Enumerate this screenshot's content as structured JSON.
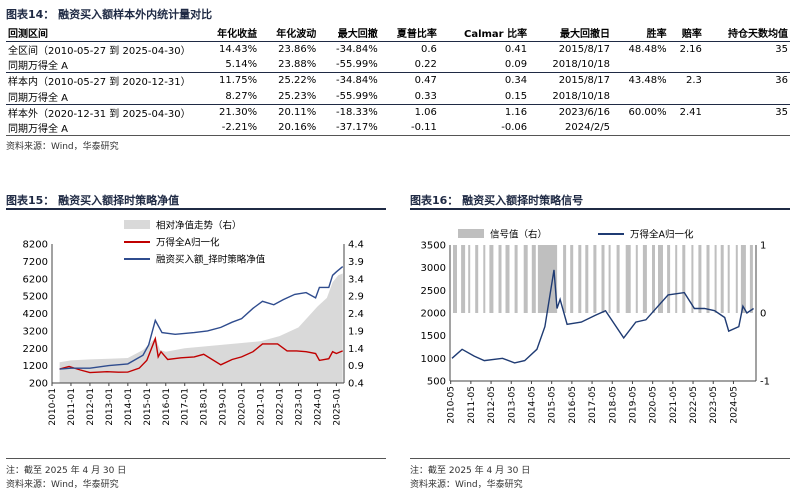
{
  "fig14": {
    "title": "图表14： 融资买入额样本外内统计量对比",
    "headers": [
      "回测区间",
      "年化收益",
      "年化波动",
      "最大回撤",
      "夏普比率",
      "Calmar 比率",
      "最大回撤日",
      "胜率",
      "赔率",
      "持仓天数均值"
    ],
    "rows": [
      [
        "全区间（2010-05-27 到 2025-04-30）",
        "14.43%",
        "23.86%",
        "-34.84%",
        "0.6",
        "0.41",
        "2015/8/17",
        "48.48%",
        "2.16",
        "35"
      ],
      [
        "同期万得全 A",
        "5.14%",
        "23.88%",
        "-55.99%",
        "0.22",
        "0.09",
        "2018/10/18",
        "",
        "",
        ""
      ],
      [
        "样本内（2010-05-27 到 2020-12-31）",
        "11.75%",
        "25.22%",
        "-34.84%",
        "0.47",
        "0.34",
        "2015/8/17",
        "43.48%",
        "2.3",
        "36"
      ],
      [
        "同期万得全 A",
        "8.27%",
        "25.23%",
        "-55.99%",
        "0.33",
        "0.15",
        "2018/10/18",
        "",
        "",
        ""
      ],
      [
        "样本外（2020-12-31 到 2025-04-30）",
        "21.30%",
        "20.11%",
        "-18.33%",
        "1.06",
        "1.16",
        "2023/6/16",
        "60.00%",
        "2.41",
        "35"
      ],
      [
        "同期万得全 A",
        "-2.21%",
        "20.16%",
        "-37.17%",
        "-0.11",
        "-0.06",
        "2024/2/5",
        "",
        "",
        ""
      ]
    ],
    "source": "资料来源：Wind，华泰研究"
  },
  "fig15": {
    "title": "图表15： 融资买入额择时策略净值",
    "note": "注：截至 2025 年 4 月 30 日",
    "source": "资料来源：Wind，华泰研究"
  },
  "fig16": {
    "title": "图表16： 融资买入额择时策略信号",
    "note": "注：截至 2025 年 4 月 30 日",
    "source": "资料来源：Wind，华泰研究"
  },
  "chart_data": [
    {
      "id": "fig15",
      "type": "line",
      "series": [
        {
          "name": "相对净值走势（右）",
          "kind": "area",
          "axis": "right",
          "color": "#d9d9d9",
          "x": [
            2010.4,
            2011,
            2012,
            2013,
            2014,
            2014.8,
            2015.1,
            2015.45,
            2015.7,
            2016,
            2017,
            2018,
            2019,
            2020,
            2021,
            2022,
            2023,
            2024,
            2024.5,
            2024.8,
            2025.1,
            2025.33
          ],
          "values": [
            1.0,
            1.05,
            1.08,
            1.1,
            1.12,
            1.35,
            1.5,
            1.7,
            1.35,
            1.3,
            1.4,
            1.45,
            1.5,
            1.55,
            1.6,
            1.75,
            2.0,
            2.6,
            2.85,
            3.3,
            3.5,
            3.55
          ]
        },
        {
          "name": "万得全A归一化",
          "kind": "line",
          "axis": "left",
          "color": "#c00000",
          "x": [
            2010.4,
            2010.9,
            2011.5,
            2012.0,
            2012.9,
            2013.5,
            2014.0,
            2014.6,
            2015.0,
            2015.45,
            2015.6,
            2015.75,
            2016.1,
            2016.8,
            2017.5,
            2018.0,
            2018.9,
            2019.5,
            2020.0,
            2020.6,
            2021.1,
            2021.9,
            2022.4,
            2022.9,
            2023.4,
            2023.9,
            2024.1,
            2024.6,
            2024.8,
            2025.0,
            2025.33
          ],
          "values": [
            1000,
            1150,
            950,
            800,
            850,
            820,
            830,
            1050,
            1500,
            2750,
            1700,
            2000,
            1550,
            1650,
            1700,
            1850,
            1250,
            1550,
            1700,
            2000,
            2450,
            2450,
            2050,
            2050,
            2000,
            1900,
            1500,
            1600,
            2000,
            1900,
            2050
          ]
        },
        {
          "name": "融资买入额_择时策略净值",
          "kind": "line",
          "axis": "left",
          "color": "#2f4c8e",
          "x": [
            2010.4,
            2011,
            2012,
            2013,
            2014,
            2014.8,
            2015.1,
            2015.45,
            2015.8,
            2016.5,
            2017.5,
            2018.2,
            2018.9,
            2019.5,
            2020,
            2020.6,
            2021.1,
            2021.7,
            2022.2,
            2022.8,
            2023.4,
            2023.9,
            2024.1,
            2024.6,
            2024.8,
            2025.0,
            2025.33
          ],
          "values": [
            1000,
            1050,
            1050,
            1200,
            1300,
            1800,
            2400,
            3800,
            3100,
            3000,
            3100,
            3200,
            3400,
            3700,
            3900,
            4500,
            4900,
            4700,
            5000,
            5300,
            5400,
            5100,
            5700,
            5700,
            6400,
            6600,
            6900
          ]
        }
      ],
      "ylim_left": [
        200,
        8200
      ],
      "yticks_left": [
        200,
        1200,
        2200,
        3200,
        4200,
        5200,
        6200,
        7200,
        8200
      ],
      "ylim_right": [
        0.4,
        4.4
      ],
      "yticks_right": [
        0.4,
        0.9,
        1.4,
        1.9,
        2.4,
        2.9,
        3.4,
        3.9,
        4.4
      ],
      "xlim": [
        2010,
        2025.4
      ],
      "xticks": [
        "2010-01",
        "2011-01",
        "2012-01",
        "2013-01",
        "2014-01",
        "2015-01",
        "2016-01",
        "2017-01",
        "2018-01",
        "2019-01",
        "2020-01",
        "2021-01",
        "2022-01",
        "2023-01",
        "2024-01",
        "2025-01"
      ],
      "legend": "top-left"
    },
    {
      "id": "fig16",
      "type": "line",
      "series": [
        {
          "name": "信号值（右）",
          "kind": "bars",
          "axis": "right",
          "color": "#bfbfbf",
          "intervals": [
            [
              2010.45,
              2010.65
            ],
            [
              2010.85,
              2011.05
            ],
            [
              2011.2,
              2011.3
            ],
            [
              2011.55,
              2011.7
            ],
            [
              2011.95,
              2012.05
            ],
            [
              2012.25,
              2012.45
            ],
            [
              2012.7,
              2012.85
            ],
            [
              2013.05,
              2013.25
            ],
            [
              2013.5,
              2013.65
            ],
            [
              2013.95,
              2014.15
            ],
            [
              2014.35,
              2014.55
            ],
            [
              2014.65,
              2015.6
            ],
            [
              2015.9,
              2016.05
            ],
            [
              2016.25,
              2016.4
            ],
            [
              2016.65,
              2016.8
            ],
            [
              2017.0,
              2017.15
            ],
            [
              2017.4,
              2017.55
            ],
            [
              2017.8,
              2017.95
            ],
            [
              2018.15,
              2018.25
            ],
            [
              2018.55,
              2018.7
            ],
            [
              2019.0,
              2019.25
            ],
            [
              2019.5,
              2019.6
            ],
            [
              2019.85,
              2020.05
            ],
            [
              2020.3,
              2020.45
            ],
            [
              2020.6,
              2020.85
            ],
            [
              2021.05,
              2021.2
            ],
            [
              2021.45,
              2021.55
            ],
            [
              2021.8,
              2021.95
            ],
            [
              2022.25,
              2022.35
            ],
            [
              2022.6,
              2022.75
            ],
            [
              2023.0,
              2023.15
            ],
            [
              2023.4,
              2023.5
            ],
            [
              2023.7,
              2023.85
            ],
            [
              2024.05,
              2024.15
            ],
            [
              2024.45,
              2024.55
            ],
            [
              2024.7,
              2024.95
            ],
            [
              2025.15,
              2025.3
            ]
          ]
        },
        {
          "name": "万得全A归一化",
          "kind": "line",
          "axis": "left",
          "color": "#1f3b73",
          "x": [
            2010.4,
            2010.9,
            2011.5,
            2012.0,
            2012.9,
            2013.5,
            2014.0,
            2014.6,
            2015.0,
            2015.45,
            2015.6,
            2015.75,
            2016.1,
            2016.8,
            2017.5,
            2018.0,
            2018.9,
            2019.5,
            2020.0,
            2020.6,
            2021.1,
            2021.9,
            2022.4,
            2022.9,
            2023.4,
            2023.9,
            2024.1,
            2024.6,
            2024.8,
            2025.0,
            2025.33
          ],
          "values": [
            1000,
            1200,
            1050,
            950,
            1000,
            900,
            950,
            1200,
            1700,
            2950,
            2100,
            2300,
            1750,
            1800,
            1950,
            2050,
            1450,
            1800,
            1850,
            2150,
            2400,
            2450,
            2100,
            2100,
            2050,
            1900,
            1600,
            1700,
            2150,
            2000,
            2100
          ]
        }
      ],
      "ylim_left": [
        500,
        3500
      ],
      "yticks_left": [
        500,
        1000,
        1500,
        2000,
        2500,
        3000,
        3500
      ],
      "ylim_right": [
        -1,
        1
      ],
      "yticks_right": [
        -1,
        0,
        1
      ],
      "xlim": [
        2010.3,
        2025.45
      ],
      "xticks": [
        "2010-05",
        "2011-05",
        "2012-05",
        "2013-05",
        "2014-05",
        "2015-05",
        "2016-05",
        "2017-05",
        "2018-05",
        "2019-05",
        "2020-05",
        "2021-05",
        "2022-05",
        "2023-05",
        "2024-05"
      ],
      "legend": "top-left"
    }
  ]
}
